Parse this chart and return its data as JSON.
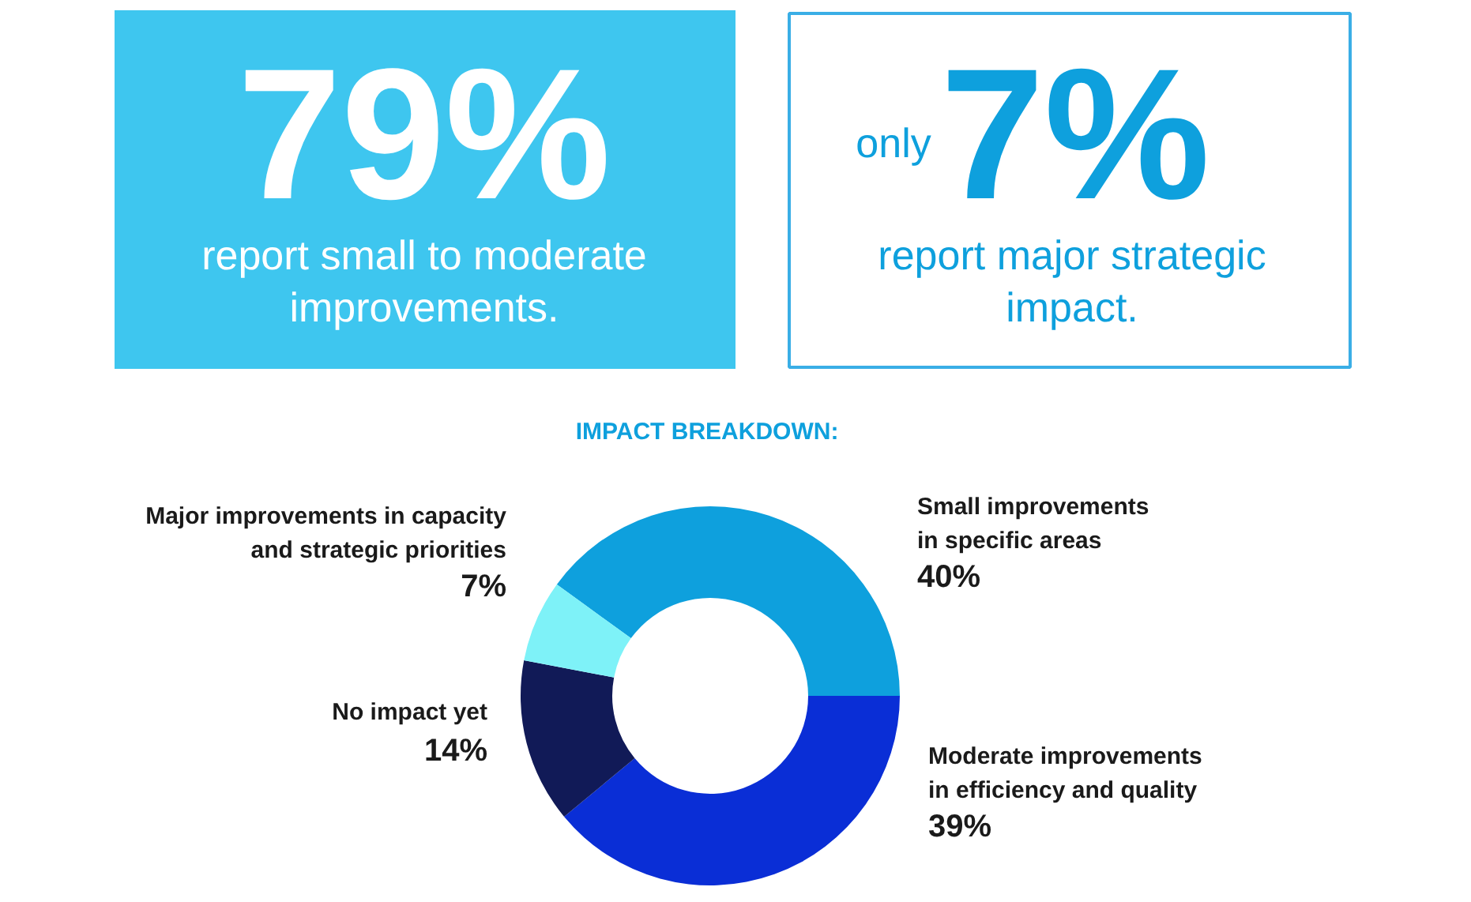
{
  "chart_data": {
    "type": "donut",
    "title": "IMPACT BREAKDOWN:",
    "categories": [
      "Small improvements\nin specific areas",
      "Moderate improvements\nin efficiency and quality",
      "No impact yet",
      "Major improvements in capacity\nand strategic priorities"
    ],
    "values": [
      40,
      39,
      14,
      7
    ],
    "colors": [
      "#0ea0dd",
      "#0a2ed6",
      "#111a57",
      "#7ef2f8"
    ],
    "value_labels": [
      "40%",
      "39%",
      "14%",
      "7%"
    ],
    "annotations": [
      "79%",
      "report small to moderate\nimprovements.",
      "only",
      "7%",
      "report major strategic\nimpact."
    ]
  }
}
